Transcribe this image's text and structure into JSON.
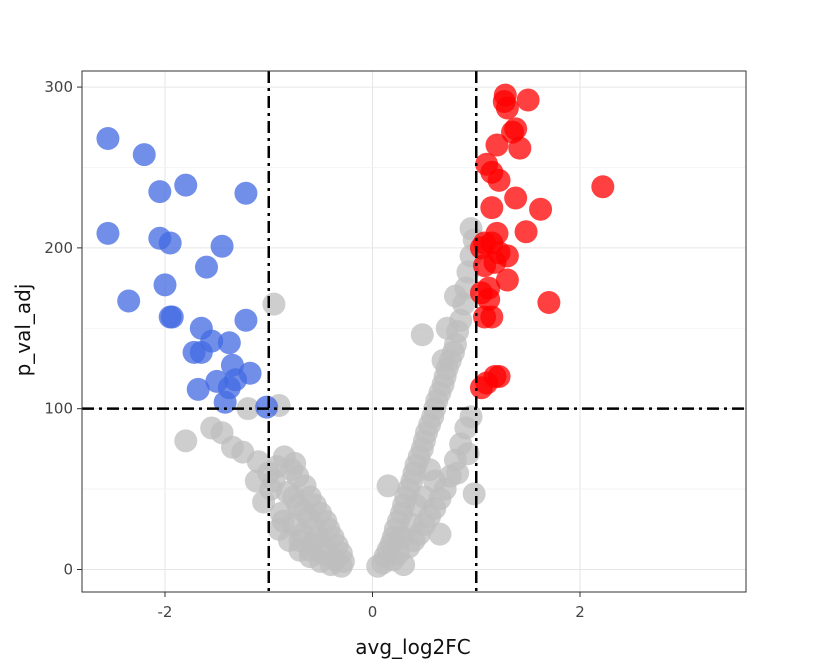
{
  "chart_data": {
    "type": "scatter",
    "title": "",
    "xlabel": "avg_log2FC",
    "ylabel": "p_val_adj",
    "xlim": [
      -2.8,
      3.6
    ],
    "ylim": [
      -14,
      310
    ],
    "x_ticks": [
      -2,
      0,
      2
    ],
    "x_tick_labels": [
      "-2",
      "0",
      "2"
    ],
    "y_ticks": [
      0,
      100,
      200,
      300
    ],
    "y_tick_labels": [
      "0",
      "100",
      "200",
      "300"
    ],
    "grid": true,
    "legend": "none",
    "thresholds": {
      "x": [
        -1,
        1
      ],
      "y": 100,
      "line_style": "dash-dot",
      "line_color": "#000000"
    },
    "colors": {
      "down": "#4169E1",
      "up": "#FF0000",
      "ns": "#BEBEBE"
    },
    "marker_opacity": 0.75,
    "series": [
      {
        "group": "ns",
        "color": "#BEBEBE",
        "points": [
          [
            -0.95,
            165
          ],
          [
            -0.9,
            102
          ],
          [
            -1.2,
            100
          ],
          [
            -1.8,
            80
          ],
          [
            -1.55,
            88
          ],
          [
            -1.45,
            85
          ],
          [
            -1.35,
            76
          ],
          [
            -1.25,
            73
          ],
          [
            -1.1,
            67
          ],
          [
            -1.0,
            60
          ],
          [
            -0.95,
            55
          ],
          [
            -0.85,
            70
          ],
          [
            -0.78,
            62
          ],
          [
            -0.72,
            58
          ],
          [
            -0.65,
            52
          ],
          [
            -0.6,
            45
          ],
          [
            -0.55,
            40
          ],
          [
            -0.5,
            35
          ],
          [
            -0.45,
            30
          ],
          [
            -0.42,
            25
          ],
          [
            -0.38,
            20
          ],
          [
            -0.34,
            15
          ],
          [
            -0.3,
            10
          ],
          [
            -0.28,
            5
          ],
          [
            -0.3,
            2
          ],
          [
            -0.4,
            3
          ],
          [
            -0.5,
            5
          ],
          [
            -0.6,
            8
          ],
          [
            -0.7,
            12
          ],
          [
            -0.8,
            18
          ],
          [
            -0.9,
            25
          ],
          [
            -1.05,
            42
          ],
          [
            -0.98,
            50
          ],
          [
            -0.88,
            35
          ],
          [
            -0.76,
            28
          ],
          [
            -0.68,
            22
          ],
          [
            -0.58,
            16
          ],
          [
            -0.48,
            10
          ],
          [
            -0.36,
            6
          ],
          [
            -0.62,
            32
          ],
          [
            -0.72,
            40
          ],
          [
            -0.82,
            48
          ],
          [
            -1.12,
            55
          ],
          [
            -0.92,
            64
          ],
          [
            -0.52,
            20
          ],
          [
            -0.46,
            14
          ],
          [
            -0.56,
            26
          ],
          [
            -0.66,
            36
          ],
          [
            -0.76,
            45
          ],
          [
            -0.86,
            30
          ],
          [
            -0.7,
            18
          ],
          [
            -0.6,
            12
          ],
          [
            -0.75,
            66
          ],
          [
            0.05,
            2
          ],
          [
            0.1,
            4
          ],
          [
            0.12,
            8
          ],
          [
            0.15,
            12
          ],
          [
            0.18,
            16
          ],
          [
            0.2,
            20
          ],
          [
            0.22,
            25
          ],
          [
            0.25,
            30
          ],
          [
            0.28,
            35
          ],
          [
            0.3,
            40
          ],
          [
            0.32,
            45
          ],
          [
            0.35,
            50
          ],
          [
            0.38,
            55
          ],
          [
            0.4,
            60
          ],
          [
            0.42,
            65
          ],
          [
            0.45,
            70
          ],
          [
            0.48,
            75
          ],
          [
            0.5,
            80
          ],
          [
            0.52,
            85
          ],
          [
            0.55,
            90
          ],
          [
            0.58,
            95
          ],
          [
            0.6,
            100
          ],
          [
            0.62,
            105
          ],
          [
            0.65,
            110
          ],
          [
            0.68,
            115
          ],
          [
            0.7,
            120
          ],
          [
            0.72,
            125
          ],
          [
            0.75,
            130
          ],
          [
            0.78,
            135
          ],
          [
            0.8,
            140
          ],
          [
            0.82,
            148
          ],
          [
            0.85,
            155
          ],
          [
            0.88,
            165
          ],
          [
            0.9,
            175
          ],
          [
            0.92,
            185
          ],
          [
            0.95,
            195
          ],
          [
            0.98,
            205
          ],
          [
            0.95,
            212
          ],
          [
            0.15,
            52
          ],
          [
            0.3,
            3
          ],
          [
            0.2,
            6
          ],
          [
            0.25,
            10
          ],
          [
            0.35,
            14
          ],
          [
            0.4,
            18
          ],
          [
            0.45,
            22
          ],
          [
            0.5,
            28
          ],
          [
            0.55,
            33
          ],
          [
            0.6,
            38
          ],
          [
            0.65,
            44
          ],
          [
            0.7,
            50
          ],
          [
            0.75,
            58
          ],
          [
            0.8,
            68
          ],
          [
            0.85,
            78
          ],
          [
            0.9,
            88
          ],
          [
            0.95,
            95
          ],
          [
            0.48,
            146
          ],
          [
            0.68,
            130
          ],
          [
            0.72,
            150
          ],
          [
            0.8,
            170
          ],
          [
            0.65,
            22
          ],
          [
            0.82,
            60
          ],
          [
            0.92,
            72
          ],
          [
            0.98,
            47
          ],
          [
            0.55,
            62
          ],
          [
            0.38,
            28
          ],
          [
            0.28,
            20
          ],
          [
            0.5,
            45
          ],
          [
            0.6,
            55
          ],
          [
            0.42,
            40
          ]
        ]
      },
      {
        "group": "down",
        "color": "#4169E1",
        "points": [
          [
            -2.55,
            268
          ],
          [
            -2.2,
            258
          ],
          [
            -2.05,
            235
          ],
          [
            -1.8,
            239
          ],
          [
            -1.22,
            234
          ],
          [
            -2.55,
            209
          ],
          [
            -2.05,
            206
          ],
          [
            -1.95,
            203
          ],
          [
            -1.45,
            201
          ],
          [
            -1.6,
            188
          ],
          [
            -2.0,
            177
          ],
          [
            -2.35,
            167
          ],
          [
            -1.95,
            157
          ],
          [
            -1.93,
            157
          ],
          [
            -1.22,
            155
          ],
          [
            -1.65,
            150
          ],
          [
            -1.55,
            142
          ],
          [
            -1.38,
            141
          ],
          [
            -1.72,
            135
          ],
          [
            -1.65,
            135
          ],
          [
            -1.35,
            127
          ],
          [
            -1.18,
            122
          ],
          [
            -1.5,
            117
          ],
          [
            -1.32,
            118
          ],
          [
            -1.68,
            112
          ],
          [
            -1.38,
            113
          ],
          [
            -1.42,
            104
          ],
          [
            -1.02,
            101
          ]
        ]
      },
      {
        "group": "up",
        "color": "#FF0000",
        "points": [
          [
            1.28,
            295
          ],
          [
            1.27,
            291
          ],
          [
            1.5,
            292
          ],
          [
            1.3,
            287
          ],
          [
            1.35,
            272
          ],
          [
            1.38,
            274
          ],
          [
            1.2,
            264
          ],
          [
            1.42,
            262
          ],
          [
            1.1,
            252
          ],
          [
            1.15,
            247
          ],
          [
            1.22,
            242
          ],
          [
            1.38,
            231
          ],
          [
            2.22,
            238
          ],
          [
            1.62,
            224
          ],
          [
            1.15,
            225
          ],
          [
            1.48,
            210
          ],
          [
            1.2,
            209
          ],
          [
            1.15,
            203
          ],
          [
            1.08,
            203
          ],
          [
            1.05,
            200
          ],
          [
            1.22,
            197
          ],
          [
            1.3,
            195
          ],
          [
            1.18,
            191
          ],
          [
            1.08,
            189
          ],
          [
            1.3,
            180
          ],
          [
            1.12,
            175
          ],
          [
            1.05,
            172
          ],
          [
            1.12,
            168
          ],
          [
            1.7,
            166
          ],
          [
            1.15,
            157
          ],
          [
            1.08,
            157
          ],
          [
            1.18,
            120
          ],
          [
            1.22,
            120
          ],
          [
            1.1,
            116
          ],
          [
            1.05,
            113
          ]
        ]
      }
    ]
  }
}
